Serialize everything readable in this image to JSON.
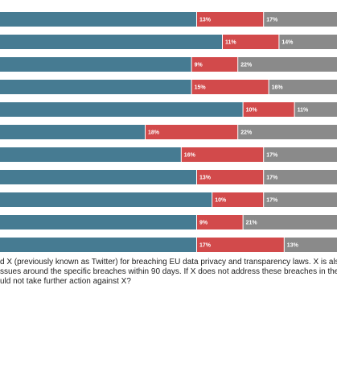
{
  "chart_data": {
    "type": "bar",
    "orientation": "horizontal",
    "stacked": true,
    "xlim": [
      0,
      100
    ],
    "series": [
      {
        "color": "#467b92",
        "values": [
          70,
          75,
          69,
          69,
          79,
          60,
          67,
          70,
          73,
          70,
          70
        ]
      },
      {
        "color": "#d24a4b",
        "values": [
          13,
          11,
          9,
          15,
          10,
          18,
          16,
          13,
          10,
          9,
          17
        ],
        "value_labels": [
          "13%",
          "11%",
          "9%",
          "15%",
          "10%",
          "18%",
          "16%",
          "13%",
          "10%",
          "9%",
          "17%"
        ]
      },
      {
        "color": "#8a8a8a",
        "values": [
          17,
          14,
          22,
          16,
          11,
          22,
          17,
          17,
          17,
          21,
          13
        ],
        "value_labels": [
          "17%",
          "14%",
          "22%",
          "16%",
          "11%",
          "22%",
          "17%",
          "17%",
          "17%",
          "21%",
          "13%"
        ]
      }
    ],
    "question_lines": [
      "d X (previously known as Twitter) for breaching EU data privacy and transparency laws. X is also",
      "ssues around the specific breaches within 90 days. If X does not address these breaches in the",
      "uld not take further action against X?"
    ]
  }
}
